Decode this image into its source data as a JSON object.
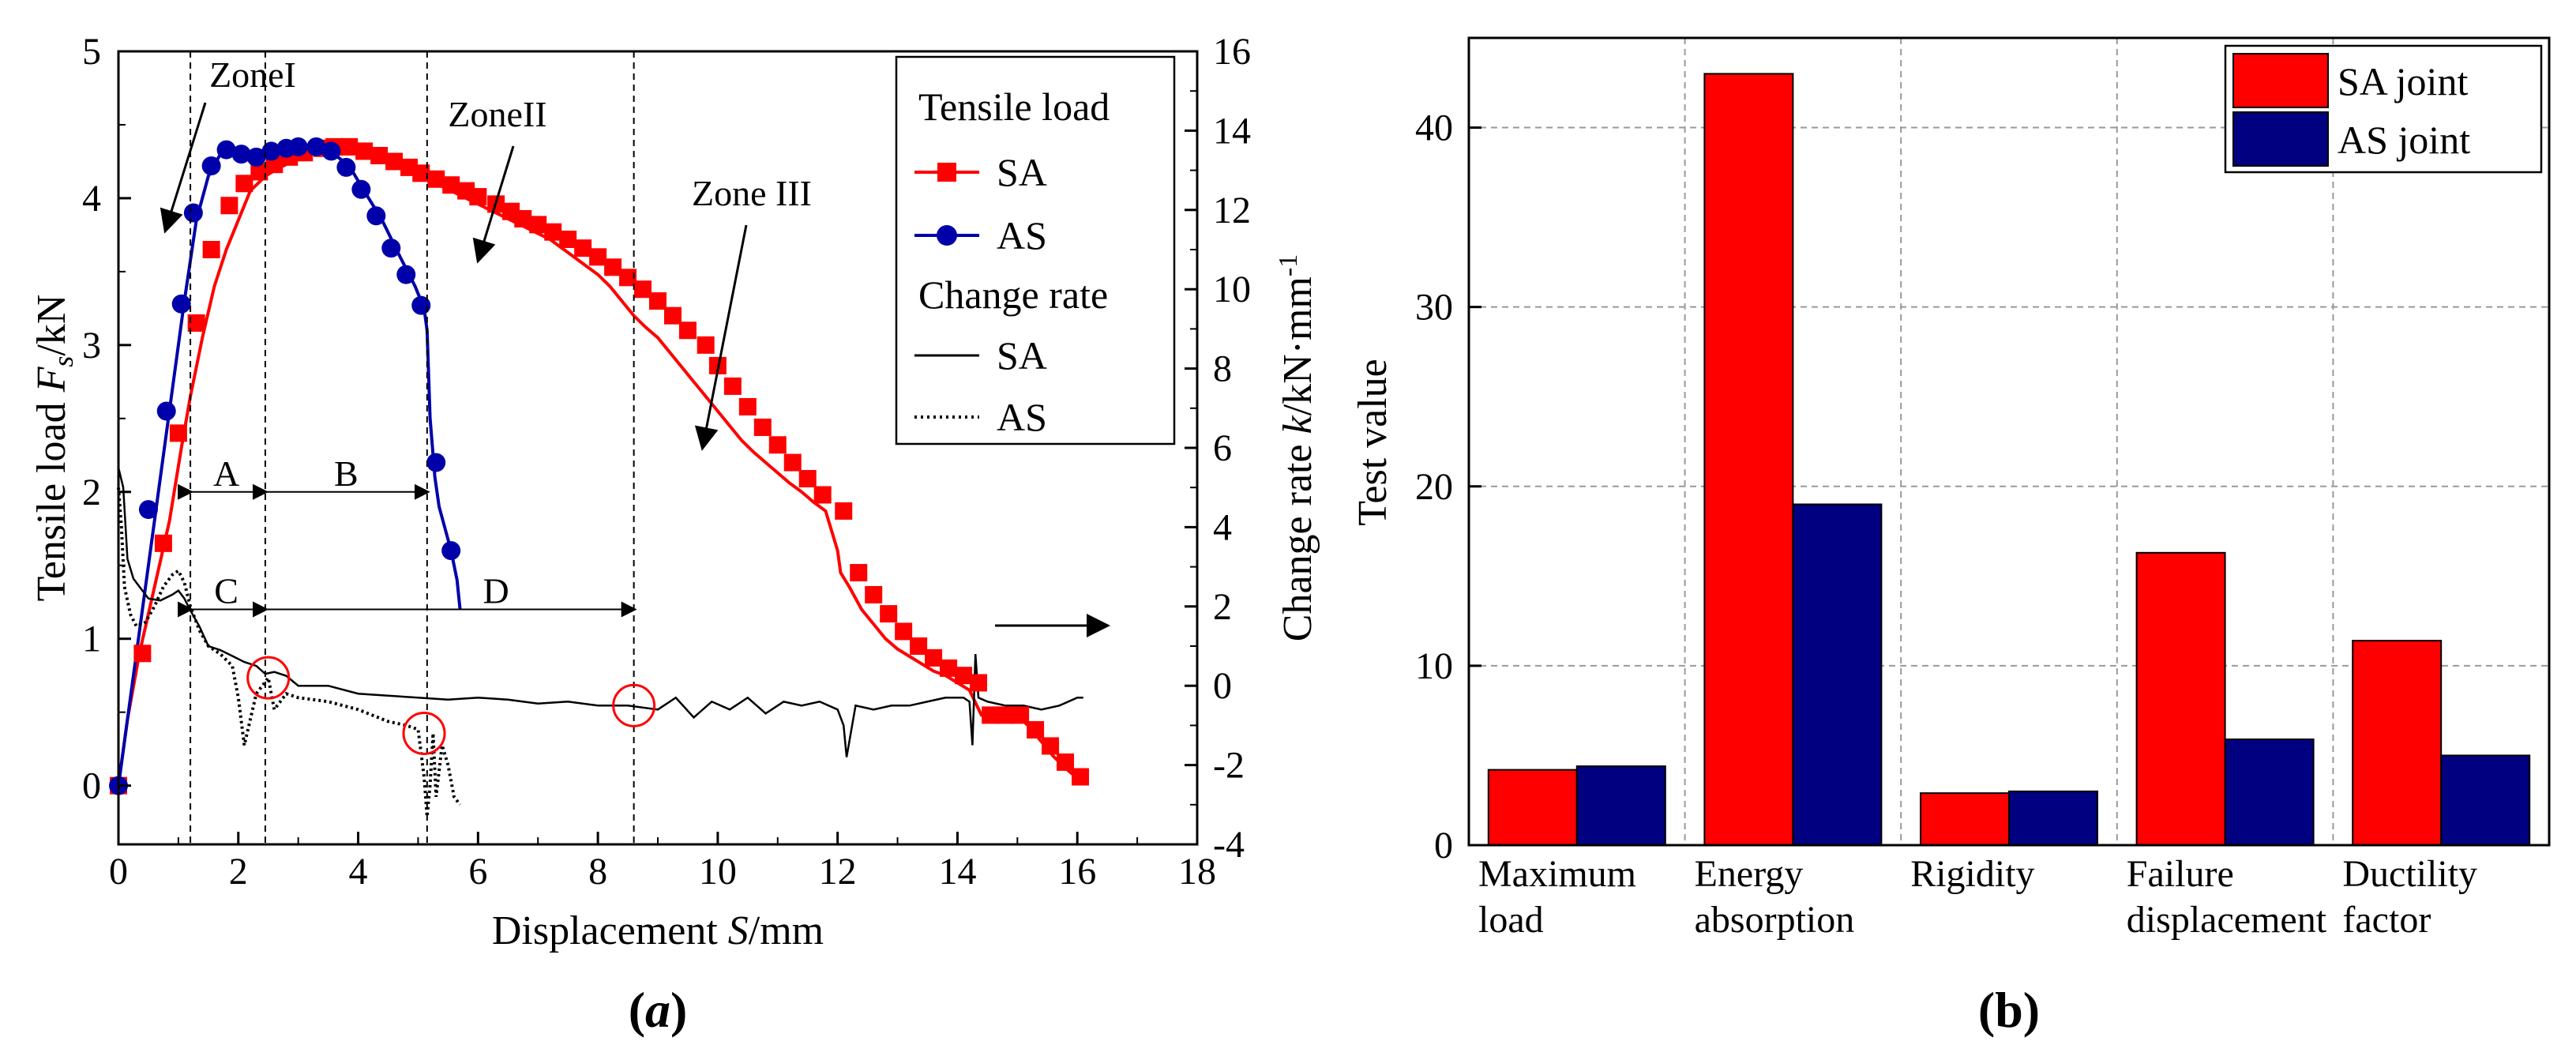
{
  "chart_data": [
    {
      "panel": "a",
      "panel_label": [
        "(",
        "a",
        ")"
      ],
      "type": "line",
      "xlabel": [
        "Displacement ",
        "S",
        "/mm"
      ],
      "ylabel_left": [
        "Tensile load ",
        "F",
        "s",
        "/kN"
      ],
      "ylabel_right": [
        "Change rate ",
        "k",
        "/kN·mm",
        "-1"
      ],
      "xlim": [
        0,
        18
      ],
      "ylim_left": [
        -0.4,
        5
      ],
      "ylim_right": [
        -4,
        16
      ],
      "xticks": [
        "0",
        "2",
        "4",
        "6",
        "8",
        "10",
        "12",
        "14",
        "16",
        "18"
      ],
      "yticks_left": [
        "0",
        "1",
        "2",
        "3",
        "4",
        "5"
      ],
      "yticks_right": [
        "-4",
        "-2",
        "0",
        "2",
        "4",
        "6",
        "8",
        "10",
        "12",
        "14",
        "16"
      ],
      "legend": {
        "placement": "top-right",
        "header_load": "Tensile load",
        "header_rate": "Change rate",
        "entries": [
          "SA",
          "AS",
          "SA",
          "AS"
        ]
      },
      "series": [
        {
          "name": "SA",
          "group": "Tensile load",
          "axis": "left",
          "color": "#ff0000",
          "marker": "square",
          "x": [
            0,
            0.15,
            0.35,
            0.6,
            0.85,
            1.05,
            1.2,
            1.4,
            1.6,
            1.8,
            2.0,
            2.2,
            2.45,
            2.65,
            2.9,
            3.2,
            3.5,
            3.8,
            4.0,
            4.2,
            4.4,
            4.6,
            4.8,
            5.0,
            5.2,
            5.4,
            5.6,
            5.8,
            6.0,
            6.2,
            6.4,
            6.6,
            6.8,
            7.0,
            7.2,
            7.4,
            7.6,
            7.8,
            8.0,
            8.2,
            8.4,
            8.6,
            8.8,
            9.0,
            9.2,
            9.4,
            9.6,
            9.8,
            10.0,
            10.2,
            10.4,
            10.6,
            10.8,
            11.0,
            11.2,
            11.4,
            11.6,
            11.8,
            12.0,
            12.05,
            12.2,
            12.4,
            12.6,
            12.8,
            13.0,
            13.2,
            13.4,
            13.6,
            13.8,
            14.0,
            14.2,
            14.4,
            14.6,
            14.8,
            15.0,
            15.2,
            15.4,
            15.6,
            15.8,
            16.0,
            16.1
          ],
          "y": [
            0,
            0.45,
            0.9,
            1.35,
            1.8,
            2.3,
            2.65,
            3.05,
            3.4,
            3.65,
            3.85,
            4.05,
            4.15,
            4.2,
            4.25,
            4.3,
            4.33,
            4.35,
            4.33,
            4.3,
            4.27,
            4.24,
            4.2,
            4.16,
            4.12,
            4.08,
            4.04,
            4.0,
            3.96,
            3.92,
            3.88,
            3.84,
            3.8,
            3.76,
            3.72,
            3.66,
            3.6,
            3.54,
            3.48,
            3.4,
            3.3,
            3.2,
            3.12,
            3.05,
            2.95,
            2.85,
            2.75,
            2.65,
            2.55,
            2.45,
            2.35,
            2.27,
            2.2,
            2.13,
            2.06,
            2.0,
            1.93,
            1.87,
            1.6,
            1.45,
            1.35,
            1.2,
            1.1,
            1.0,
            0.93,
            0.88,
            0.83,
            0.78,
            0.75,
            0.7,
            0.65,
            0.48,
            0.48,
            0.48,
            0.48,
            0.4,
            0.3,
            0.2,
            0.12,
            0.05,
            0.02
          ],
          "marker_x": [
            0,
            0.4,
            0.75,
            1.0,
            1.3,
            1.55,
            1.85,
            2.1,
            2.35,
            2.6,
            2.85,
            3.1,
            3.4,
            3.6,
            3.85,
            4.1,
            4.35,
            4.6,
            4.85,
            5.05,
            5.3,
            5.55,
            5.8,
            6.0,
            6.3,
            6.55,
            6.75,
            7.0,
            7.25,
            7.5,
            7.75,
            8.0,
            8.25,
            8.5,
            8.75,
            9.0,
            9.25,
            9.5,
            9.8,
            10.0,
            10.25,
            10.5,
            10.75,
            11.0,
            11.25,
            11.5,
            11.75,
            12.1,
            12.35,
            12.6,
            12.85,
            13.1,
            13.35,
            13.6,
            13.85,
            14.1,
            14.35,
            14.55,
            14.8,
            15.05,
            15.3,
            15.55,
            15.8,
            16.05
          ],
          "marker_y": [
            0,
            0.9,
            1.65,
            2.4,
            3.15,
            3.65,
            3.95,
            4.1,
            4.18,
            4.23,
            4.28,
            4.31,
            4.34,
            4.35,
            4.35,
            4.32,
            4.29,
            4.25,
            4.21,
            4.17,
            4.13,
            4.09,
            4.05,
            4.01,
            3.96,
            3.91,
            3.86,
            3.82,
            3.77,
            3.72,
            3.66,
            3.6,
            3.53,
            3.46,
            3.38,
            3.3,
            3.2,
            3.1,
            3.0,
            2.86,
            2.72,
            2.58,
            2.44,
            2.32,
            2.2,
            2.09,
            1.98,
            1.87,
            1.45,
            1.3,
            1.17,
            1.05,
            0.95,
            0.87,
            0.8,
            0.75,
            0.7,
            0.48,
            0.48,
            0.48,
            0.38,
            0.27,
            0.16,
            0.06,
            0.02
          ]
        },
        {
          "name": "AS",
          "group": "Tensile load",
          "axis": "left",
          "color": "#0000aa",
          "marker": "circle",
          "x": [
            0,
            0.3,
            0.6,
            0.9,
            1.1,
            1.3,
            1.5,
            1.7,
            1.9,
            2.1,
            2.35,
            2.6,
            2.85,
            3.1,
            3.35,
            3.6,
            3.85,
            4.1,
            4.4,
            4.7,
            4.95,
            5.1,
            5.15,
            5.2,
            5.28,
            5.35,
            5.45,
            5.55,
            5.65,
            5.7
          ],
          "y": [
            0,
            0.9,
            1.8,
            2.7,
            3.3,
            3.85,
            4.15,
            4.3,
            4.33,
            4.3,
            4.32,
            4.34,
            4.35,
            4.36,
            4.35,
            4.3,
            4.22,
            4.05,
            3.85,
            3.6,
            3.4,
            3.25,
            3.1,
            2.5,
            2.1,
            1.9,
            1.75,
            1.6,
            1.4,
            1.2
          ],
          "marker_x": [
            0,
            0.5,
            0.8,
            1.05,
            1.25,
            1.55,
            1.8,
            2.05,
            2.3,
            2.55,
            2.8,
            3.0,
            3.3,
            3.55,
            3.8,
            4.05,
            4.3,
            4.55,
            4.8,
            5.05,
            5.3,
            5.55
          ],
          "marker_y": [
            0,
            1.88,
            2.55,
            3.28,
            3.9,
            4.22,
            4.33,
            4.3,
            4.28,
            4.32,
            4.34,
            4.35,
            4.35,
            4.32,
            4.21,
            4.06,
            3.88,
            3.66,
            3.48,
            3.27,
            2.2,
            1.6
          ]
        },
        {
          "name": "SA",
          "group": "Change rate",
          "axis": "right",
          "color": "#000000",
          "style": "solid",
          "x": [
            0,
            0.08,
            0.15,
            0.25,
            0.35,
            0.5,
            0.7,
            0.9,
            1.0,
            1.1,
            1.2,
            1.35,
            1.5,
            1.7,
            1.9,
            2.1,
            2.3,
            2.45,
            2.6,
            2.8,
            3.0,
            3.5,
            4.0,
            4.5,
            5.0,
            5.5,
            6.0,
            6.5,
            7.0,
            7.5,
            8.0,
            8.5,
            9.0,
            9.3,
            9.6,
            9.9,
            10.2,
            10.5,
            10.8,
            11.1,
            11.4,
            11.7,
            12.0,
            12.1,
            12.15,
            12.3,
            12.6,
            12.9,
            13.2,
            13.5,
            13.8,
            14.1,
            14.2,
            14.25,
            14.3,
            14.35,
            14.5,
            14.8,
            15.1,
            15.4,
            15.7,
            16.0,
            16.1
          ],
          "y": [
            5.5,
            5.0,
            3.2,
            2.7,
            2.5,
            2.2,
            2.15,
            2.3,
            2.4,
            2.2,
            1.9,
            1.5,
            1.0,
            0.9,
            0.75,
            0.6,
            0.5,
            0.3,
            0.35,
            0.25,
            0.0,
            0.0,
            -0.2,
            -0.25,
            -0.3,
            -0.35,
            -0.3,
            -0.35,
            -0.45,
            -0.4,
            -0.5,
            -0.5,
            -0.6,
            -0.3,
            -0.8,
            -0.4,
            -0.6,
            -0.3,
            -0.7,
            -0.4,
            -0.5,
            -0.4,
            -0.6,
            -1.0,
            -1.8,
            -0.5,
            -0.6,
            -0.5,
            -0.5,
            -0.4,
            -0.3,
            -0.3,
            -0.4,
            -1.5,
            0.8,
            -0.3,
            -0.4,
            -0.5,
            -0.5,
            -0.6,
            -0.5,
            -0.3,
            -0.3
          ]
        },
        {
          "name": "AS",
          "group": "Change rate",
          "axis": "right",
          "color": "#000000",
          "style": "dotted",
          "x": [
            0,
            0.05,
            0.1,
            0.2,
            0.3,
            0.45,
            0.6,
            0.75,
            0.9,
            1.0,
            1.1,
            1.2,
            1.35,
            1.5,
            1.7,
            1.9,
            2.0,
            2.1,
            2.3,
            2.5,
            2.6,
            2.8,
            3.0,
            3.5,
            4.0,
            4.5,
            4.8,
            5.0,
            5.1,
            5.15,
            5.2,
            5.25,
            5.3,
            5.4,
            5.5,
            5.6,
            5.7
          ],
          "y": [
            5.0,
            4.0,
            2.5,
            1.8,
            1.5,
            1.6,
            2.0,
            2.5,
            2.8,
            2.9,
            2.6,
            2.0,
            1.4,
            1.0,
            0.8,
            0.5,
            -0.3,
            -1.5,
            -0.2,
            0.2,
            -0.6,
            -0.2,
            -0.3,
            -0.4,
            -0.6,
            -0.9,
            -1.0,
            -1.1,
            -2.3,
            -3.3,
            -2.5,
            -1.2,
            -2.8,
            -1.5,
            -2.0,
            -2.8,
            -3.0
          ]
        }
      ],
      "zones": [
        "ZoneI",
        "ZoneII",
        "Zone III"
      ],
      "intervals": [
        "A",
        "B",
        "C",
        "D"
      ],
      "circle_markers": [
        {
          "x": 2.5,
          "y_right": 0.2
        },
        {
          "x": 5.1,
          "y_right": -1.2
        },
        {
          "x": 8.6,
          "y_right": -0.5
        }
      ]
    },
    {
      "panel": "b",
      "panel_label": [
        "(",
        "b",
        ")"
      ],
      "type": "bar",
      "ylabel": "Test value",
      "ylim": [
        0,
        45
      ],
      "yticks": [
        "0",
        "10",
        "20",
        "30",
        "40"
      ],
      "categories": [
        [
          "Maximum",
          "load"
        ],
        [
          "Energy",
          "absorption"
        ],
        [
          "Rigidity"
        ],
        [
          "Failure",
          "displacement"
        ],
        [
          "Ductility",
          "factor"
        ]
      ],
      "series": [
        {
          "name": "SA joint",
          "color": "#ff0000",
          "values": [
            4.2,
            43.0,
            2.9,
            16.3,
            11.4
          ]
        },
        {
          "name": "AS joint",
          "color": "#000080",
          "values": [
            4.4,
            19.0,
            3.0,
            5.9,
            5.0
          ]
        }
      ],
      "legend": {
        "placement": "top-right"
      },
      "grid": true
    }
  ]
}
